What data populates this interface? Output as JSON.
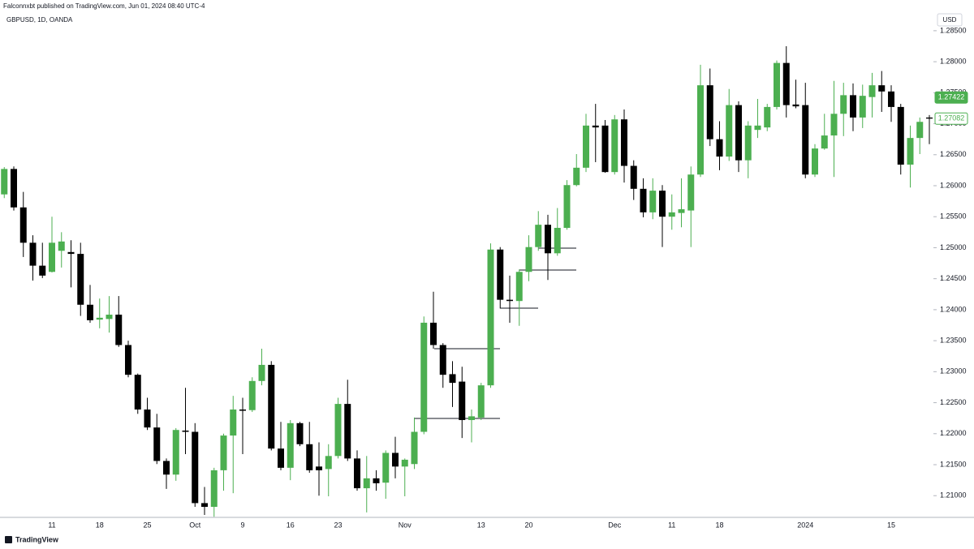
{
  "header": {
    "published": "Falconnxbt published on TradingView.com, Jun 01, 2024 08:40 UTC-4",
    "brand": "TradingView"
  },
  "chart_data": {
    "type": "candlestick",
    "title": "GBPUSD, 1D, OANDA",
    "currency": "USD",
    "up_color": "#4caf50",
    "down_color": "#000000",
    "categories": [
      null,
      null,
      null,
      null,
      null,
      "11",
      null,
      null,
      null,
      null,
      "18",
      null,
      null,
      null,
      null,
      "25",
      null,
      null,
      null,
      null,
      "Oct",
      null,
      null,
      null,
      null,
      "9",
      null,
      null,
      null,
      null,
      "16",
      null,
      null,
      null,
      null,
      "23",
      null,
      null,
      null,
      null,
      null,
      null,
      "Nov",
      null,
      null,
      null,
      null,
      null,
      null,
      null,
      "13",
      null,
      null,
      null,
      null,
      "20",
      null,
      null,
      null,
      null,
      null,
      null,
      null,
      null,
      "Dec",
      null,
      null,
      null,
      null,
      null,
      "11",
      null,
      null,
      null,
      null,
      "18",
      null,
      null,
      null,
      null,
      null,
      null,
      null,
      null,
      "2024",
      null,
      null,
      null,
      null,
      null,
      null,
      null,
      null,
      "15",
      null,
      null,
      null,
      null
    ],
    "open": [
      1.2586,
      1.2627,
      1.2565,
      1.2508,
      1.2471,
      1.2461,
      1.2495,
      1.2493,
      1.249,
      1.2408,
      1.2384,
      1.2385,
      1.2392,
      1.2343,
      1.2295,
      1.2239,
      1.221,
      1.2156,
      1.2134,
      1.2205,
      1.2203,
      1.2088,
      1.2082,
      1.2141,
      1.2197,
      1.2239,
      1.2238,
      1.2285,
      1.2311,
      1.2176,
      1.2145,
      1.2217,
      1.2183,
      1.2147,
      1.2143,
      1.2164,
      1.2248,
      1.216,
      1.2112,
      1.2128,
      1.2121,
      1.2169,
      1.2147,
      1.2151,
      1.2203,
      1.2379,
      1.2343,
      1.2296,
      1.2284,
      1.2222,
      1.2226,
      1.2278,
      1.2497,
      1.2416,
      1.2414,
      1.2461,
      1.2501,
      1.2537,
      1.2491,
      1.2532,
      1.2601,
      1.2629,
      1.2697,
      1.2697,
      1.2622,
      1.2707,
      1.2632,
      1.2595,
      1.2557,
      1.2592,
      1.255,
      1.2556,
      1.256,
      1.2618,
      1.2762,
      1.2675,
      1.2647,
      1.273,
      1.2641,
      1.269,
      1.2694,
      1.2727,
      1.2798,
      1.2731,
      1.273,
      1.2618,
      1.266,
      1.2681,
      1.2716,
      1.2746,
      1.271,
      1.2743,
      1.2762,
      1.2752,
      1.2727,
      1.2634,
      1.2677,
      1.271
    ],
    "high": [
      1.263,
      1.2631,
      1.259,
      1.252,
      1.2508,
      1.255,
      1.2525,
      1.2512,
      1.2508,
      1.244,
      1.2418,
      1.2422,
      1.2422,
      1.235,
      1.2297,
      1.2258,
      1.2232,
      1.216,
      1.2209,
      1.2274,
      1.2217,
      1.2114,
      1.2145,
      1.22,
      1.2261,
      1.2258,
      1.2291,
      1.2337,
      1.2317,
      1.2219,
      1.2222,
      1.2219,
      1.2219,
      1.2186,
      1.2183,
      1.2258,
      1.2287,
      1.2173,
      1.2164,
      1.2141,
      1.2173,
      1.2195,
      1.216,
      1.2226,
      1.2389,
      1.2429,
      1.2346,
      1.2317,
      1.2308,
      1.2239,
      1.2282,
      1.2507,
      1.2501,
      1.2455,
      1.2465,
      1.252,
      1.2559,
      1.2553,
      1.2564,
      1.2609,
      1.2651,
      1.2716,
      1.2732,
      1.2706,
      1.2714,
      1.2723,
      1.2641,
      1.2612,
      1.2612,
      1.2601,
      1.2586,
      1.2612,
      1.2631,
      1.2795,
      1.2789,
      1.2704,
      1.2756,
      1.2736,
      1.2704,
      1.274,
      1.2732,
      1.2802,
      1.2825,
      1.2771,
      1.2766,
      1.2667,
      1.2716,
      1.2769,
      1.2766,
      1.2765,
      1.2763,
      1.2782,
      1.2785,
      1.2762,
      1.2732,
      1.2697,
      1.271,
      1.2714
    ],
    "low": [
      1.258,
      1.256,
      1.2485,
      1.2447,
      1.2451,
      1.246,
      1.2468,
      1.2436,
      1.239,
      1.2379,
      1.237,
      1.2363,
      1.234,
      1.2291,
      1.2232,
      1.2206,
      1.2151,
      1.2111,
      1.2124,
      1.2167,
      1.2082,
      1.2069,
      1.2066,
      1.2108,
      1.2104,
      1.2167,
      1.2235,
      1.2278,
      1.2173,
      1.2141,
      1.2125,
      1.218,
      1.2137,
      1.21,
      1.2099,
      1.216,
      1.2156,
      1.2108,
      1.2073,
      1.2108,
      1.2095,
      1.2128,
      1.2099,
      1.2143,
      1.2199,
      1.2337,
      1.2274,
      1.2243,
      1.2193,
      1.2186,
      1.2222,
      1.2274,
      1.2402,
      1.2379,
      1.2374,
      1.2446,
      1.2495,
      1.2448,
      1.2487,
      1.2529,
      1.2599,
      1.2622,
      1.2638,
      1.2621,
      1.2618,
      1.2605,
      1.2577,
      1.2549,
      1.2546,
      1.2501,
      1.2529,
      1.2533,
      1.2501,
      1.2614,
      1.2664,
      1.2625,
      1.264,
      1.2622,
      1.2612,
      1.2677,
      1.2688,
      1.2723,
      1.271,
      1.2725,
      1.2612,
      1.2614,
      1.2658,
      1.2614,
      1.268,
      1.2688,
      1.2693,
      1.271,
      1.2719,
      1.2703,
      1.2618,
      1.2597,
      1.2651,
      1.2667
    ],
    "close": [
      1.2627,
      1.2565,
      1.2508,
      1.2471,
      1.2455,
      1.2508,
      1.251,
      1.249,
      1.2408,
      1.2383,
      1.2387,
      1.2392,
      1.2343,
      1.2295,
      1.2239,
      1.221,
      1.2156,
      1.2134,
      1.2206,
      1.2203,
      1.2088,
      1.2082,
      1.2141,
      1.2197,
      1.2239,
      1.2237,
      1.2285,
      1.2311,
      1.2176,
      1.2145,
      1.2217,
      1.2183,
      1.2141,
      1.2141,
      1.2164,
      1.2248,
      1.216,
      1.2112,
      1.2128,
      1.212,
      1.2169,
      1.2147,
      1.2158,
      1.2203,
      1.2379,
      1.2343,
      1.2295,
      1.2282,
      1.2222,
      1.2228,
      1.2278,
      1.2497,
      1.2416,
      1.2414,
      1.2461,
      1.2501,
      1.2537,
      1.2491,
      1.2532,
      1.2601,
      1.2629,
      1.2697,
      1.2694,
      1.2622,
      1.2707,
      1.2632,
      1.2595,
      1.2557,
      1.2592,
      1.255,
      1.2557,
      1.2562,
      1.2618,
      1.2762,
      1.2675,
      1.2647,
      1.273,
      1.2641,
      1.2697,
      1.2697,
      1.2727,
      1.2798,
      1.273,
      1.2728,
      1.2618,
      1.266,
      1.2681,
      1.2716,
      1.2746,
      1.271,
      1.2745,
      1.2762,
      1.2752,
      1.2727,
      1.2634,
      1.2677,
      1.2703,
      1.27082
    ],
    "ylim": [
      1.2065,
      1.2876
    ],
    "yticks": [
      {
        "value": 1.21,
        "label": "1.21000"
      },
      {
        "value": 1.215,
        "label": "1.21500"
      },
      {
        "value": 1.22,
        "label": "1.22000"
      },
      {
        "value": 1.225,
        "label": "1.22500"
      },
      {
        "value": 1.23,
        "label": "1.23000"
      },
      {
        "value": 1.235,
        "label": "1.23500"
      },
      {
        "value": 1.24,
        "label": "1.24000"
      },
      {
        "value": 1.245,
        "label": "1.24500"
      },
      {
        "value": 1.25,
        "label": "1.25000"
      },
      {
        "value": 1.255,
        "label": "1.25500"
      },
      {
        "value": 1.26,
        "label": "1.26000"
      },
      {
        "value": 1.265,
        "label": "1.26500"
      },
      {
        "value": 1.27,
        "label": "1.27000"
      },
      {
        "value": 1.275,
        "label": "1.27500"
      },
      {
        "value": 1.28,
        "label": "1.28000"
      },
      {
        "value": 1.285,
        "label": "1.28500"
      }
    ],
    "price_markers": [
      {
        "value": 1.27422,
        "style": "filled"
      },
      {
        "value": 1.27082,
        "style": "outline"
      }
    ]
  }
}
